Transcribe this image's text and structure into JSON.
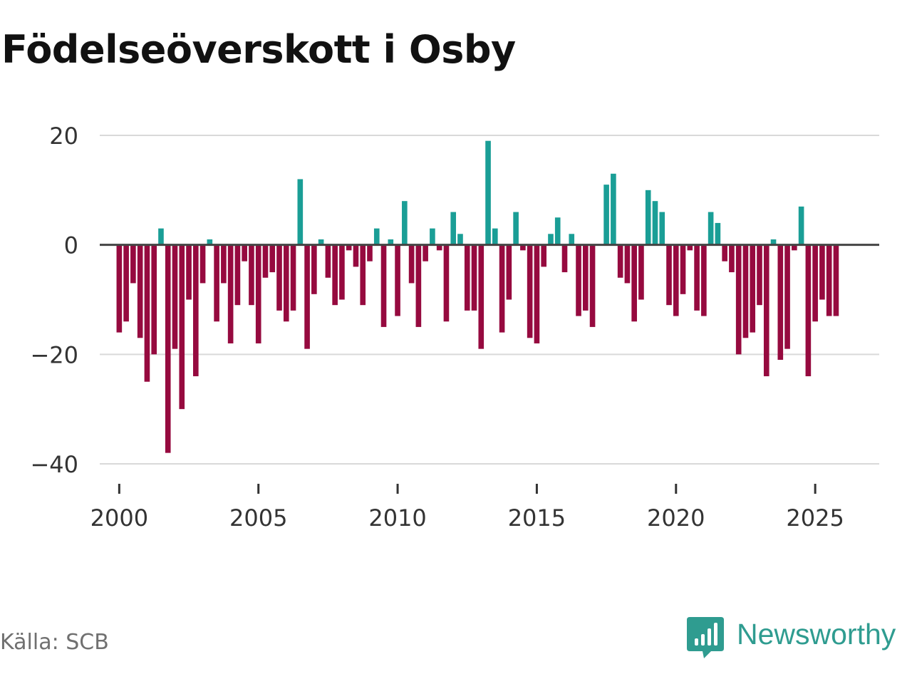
{
  "title": "Födelseöverskott i Osby",
  "source": "Källa: SCB",
  "brand": {
    "name": "Newsworthy",
    "icon": "newsworthy-logo-icon"
  },
  "colors": {
    "positive": "#1a9e96",
    "negative": "#960a3f",
    "brand": "#2f9c90",
    "grid": "#d9d9d9",
    "zero_line": "#444444"
  },
  "chart_data": {
    "type": "bar",
    "title": "Födelseöverskott i Osby",
    "xlabel": "",
    "ylabel": "",
    "ylim": [
      -40,
      20
    ],
    "xlim": [
      1999.3,
      2027.3
    ],
    "yticks": [
      20,
      0,
      -20,
      -40
    ],
    "ytick_labels": [
      "20",
      "0",
      "−20",
      "−40"
    ],
    "xticks": [
      2000,
      2005,
      2010,
      2015,
      2020,
      2025
    ],
    "xtick_labels": [
      "2000",
      "2005",
      "2010",
      "2015",
      "2020",
      "2025"
    ],
    "x_start": 2000.0,
    "x_step": 0.25,
    "values": [
      -16,
      -14,
      -7,
      -17,
      -25,
      -20,
      3,
      -38,
      -19,
      -30,
      -10,
      -24,
      -7,
      1,
      -14,
      -7,
      -18,
      -11,
      -3,
      -11,
      -18,
      -6,
      -5,
      -12,
      -14,
      -12,
      12,
      -19,
      -9,
      1,
      -6,
      -11,
      -10,
      -1,
      -4,
      -11,
      -3,
      3,
      -15,
      1,
      -13,
      8,
      -7,
      -15,
      -3,
      3,
      -1,
      -14,
      6,
      2,
      -12,
      -12,
      -19,
      19,
      3,
      -16,
      -10,
      6,
      -1,
      -17,
      -18,
      -4,
      2,
      5,
      -5,
      2,
      -13,
      -12,
      -15,
      0,
      11,
      13,
      -6,
      -7,
      -14,
      -10,
      10,
      8,
      6,
      -11,
      -13,
      -9,
      -1,
      -12,
      -13,
      6,
      4,
      -3,
      -5,
      -20,
      -17,
      -16,
      -11,
      -24,
      1,
      -21,
      -19,
      -1,
      7,
      -24,
      -14,
      -10,
      -13,
      -13
    ]
  }
}
